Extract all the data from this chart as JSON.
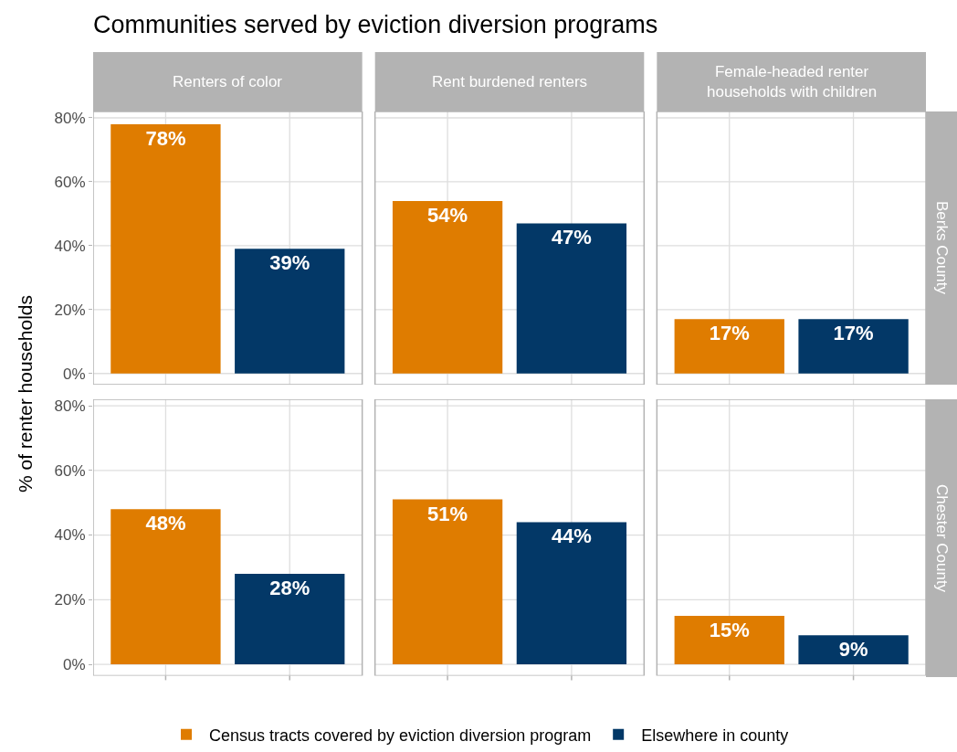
{
  "chart_data": [
    {
      "type": "bar",
      "title": "Communities served by eviction diversion programs",
      "ylabel": "% of renter households",
      "categories": [
        "Renters of color",
        "Rent burdened renters",
        "Female-headed renter households with children"
      ],
      "series": [
        {
          "color": "#df7c00",
          "values": [
            78,
            54,
            17
          ],
          "value_labels": [
            "78%",
            "54%",
            "17%"
          ]
        },
        {
          "color": "#033867",
          "values": [
            39,
            47,
            17
          ],
          "value_labels": [
            "39%",
            "47%",
            "17%"
          ]
        }
      ],
      "ylim": [
        -3.5,
        82
      ],
      "yticks": [
        {
          "value": 0,
          "label": "0%"
        },
        {
          "value": 20,
          "label": "20%"
        },
        {
          "value": 40,
          "label": "40%"
        },
        {
          "value": 60,
          "label": "60%"
        },
        {
          "value": 80,
          "label": "80%"
        }
      ],
      "grid": true,
      "annotations": [
        "Berks County"
      ]
    },
    {
      "type": "bar",
      "legend": "bottom",
      "categories": [
        null,
        null,
        null
      ],
      "series": [
        {
          "name": "Census tracts covered by eviction diversion program",
          "color": "#df7c00",
          "values": [
            48,
            51,
            15
          ],
          "value_labels": [
            "48%",
            "51%",
            "15%"
          ]
        },
        {
          "name": "Elsewhere in county",
          "color": "#033867",
          "values": [
            28,
            44,
            9
          ],
          "value_labels": [
            "28%",
            "44%",
            "9%"
          ]
        }
      ],
      "ylim": [
        -3.5,
        82
      ],
      "yticks": [
        {
          "value": 0,
          "label": "0%"
        },
        {
          "value": 20,
          "label": "20%"
        },
        {
          "value": 40,
          "label": "40%"
        },
        {
          "value": 60,
          "label": "60%"
        },
        {
          "value": 80,
          "label": "80%"
        }
      ],
      "grid": true,
      "tick_labels": "y",
      "annotations": [
        "Chester County"
      ]
    }
  ]
}
